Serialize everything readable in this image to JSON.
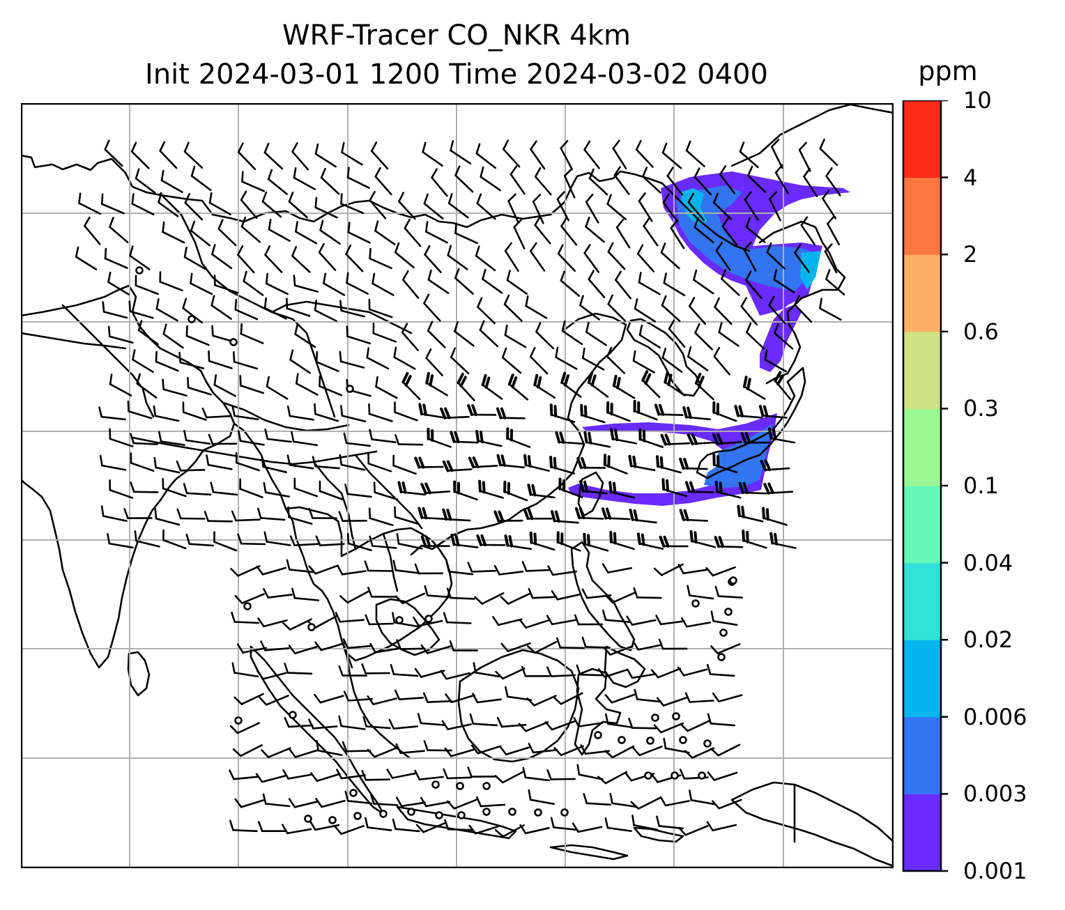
{
  "title": {
    "line1": "WRF-Tracer CO_NKR 4km",
    "line2": "Init 2024-03-01 1200 Time 2024-03-02 0400"
  },
  "colorbar": {
    "unit": "ppm",
    "ticks": [
      "0.001",
      "0.003",
      "0.006",
      "0.02",
      "0.04",
      "0.1",
      "0.3",
      "0.6",
      "2",
      "4",
      "10"
    ],
    "colors": [
      "#6a2bff",
      "#3375f0",
      "#04b4ec",
      "#31e0d6",
      "#66f8b8",
      "#99f892",
      "#cfe085",
      "#fdb065",
      "#fe7640",
      "#fe2a1a"
    ]
  },
  "map": {
    "gridlines": true,
    "tracer_colors": {
      "low": "#6a2bff",
      "mid": "#3375f0",
      "high": "#04b4ec"
    },
    "wind_barbs": "shown",
    "calm_circles": "shown"
  }
}
